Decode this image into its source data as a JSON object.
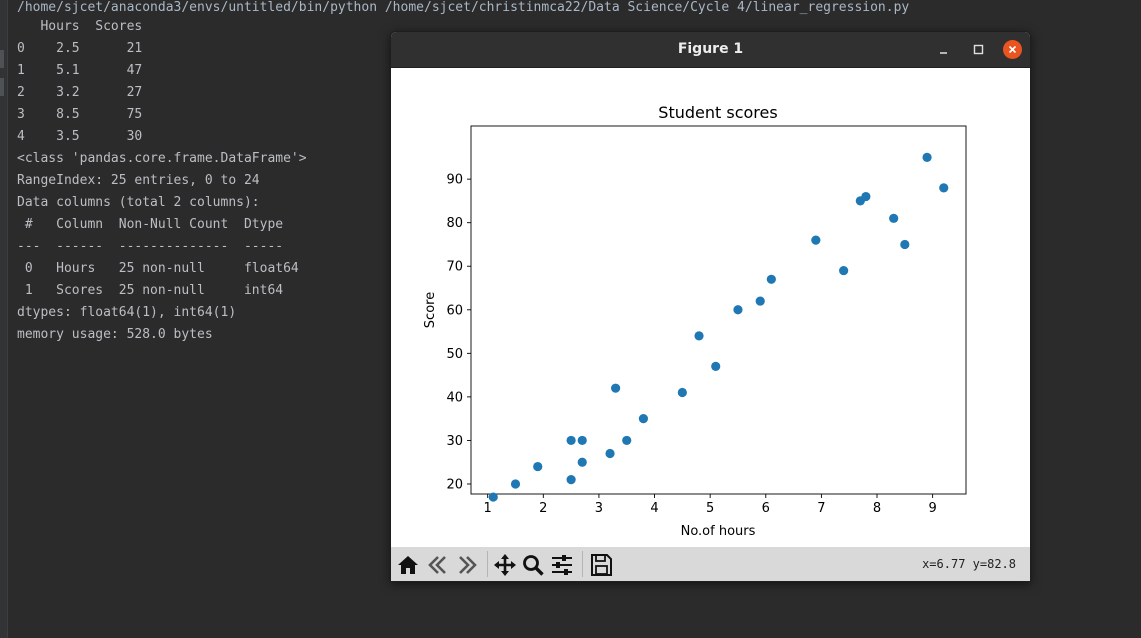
{
  "console": {
    "command": "/home/sjcet/anaconda3/envs/untitled/bin/python /home/sjcet/christinmca22/Data Science/Cycle 4/linear_regression.py",
    "lines": [
      "   Hours  Scores",
      "0    2.5      21",
      "1    5.1      47",
      "2    3.2      27",
      "3    8.5      75",
      "4    3.5      30",
      "<class 'pandas.core.frame.DataFrame'>",
      "RangeIndex: 25 entries, 0 to 24",
      "Data columns (total 2 columns):",
      " #   Column  Non-Null Count  Dtype  ",
      "---  ------  --------------  -----  ",
      " 0   Hours   25 non-null     float64",
      " 1   Scores  25 non-null     int64  ",
      "dtypes: float64(1), int64(1)",
      "memory usage: 528.0 bytes"
    ]
  },
  "window": {
    "title": "Figure 1",
    "close_color": "#e95420"
  },
  "toolbar": {
    "buttons": [
      "home-icon",
      "back-arrow-icon",
      "forward-arrow-icon",
      "pan-icon",
      "zoom-icon",
      "subplots-icon",
      "save-icon"
    ],
    "coords": "x=6.77 y=82.8"
  },
  "chart_data": {
    "type": "scatter",
    "title": "Student scores",
    "xlabel": "No.of hours",
    "ylabel": "Score",
    "xlim": [
      0.7,
      9.6
    ],
    "ylim": [
      17.7,
      102.2
    ],
    "xticks": [
      1,
      2,
      3,
      4,
      5,
      6,
      7,
      8,
      9
    ],
    "yticks": [
      20,
      30,
      40,
      50,
      60,
      70,
      80,
      90
    ],
    "color": "#1f77b4",
    "points": [
      [
        2.5,
        21
      ],
      [
        5.1,
        47
      ],
      [
        3.2,
        27
      ],
      [
        8.5,
        75
      ],
      [
        3.5,
        30
      ],
      [
        1.5,
        20
      ],
      [
        9.2,
        88
      ],
      [
        5.5,
        60
      ],
      [
        8.3,
        81
      ],
      [
        2.7,
        25
      ],
      [
        7.7,
        85
      ],
      [
        5.9,
        62
      ],
      [
        4.5,
        41
      ],
      [
        3.3,
        42
      ],
      [
        1.1,
        17
      ],
      [
        8.9,
        95
      ],
      [
        2.5,
        30
      ],
      [
        1.9,
        24
      ],
      [
        6.1,
        67
      ],
      [
        7.4,
        69
      ],
      [
        2.7,
        30
      ],
      [
        4.8,
        54
      ],
      [
        3.8,
        35
      ],
      [
        6.9,
        76
      ],
      [
        7.8,
        86
      ]
    ]
  }
}
